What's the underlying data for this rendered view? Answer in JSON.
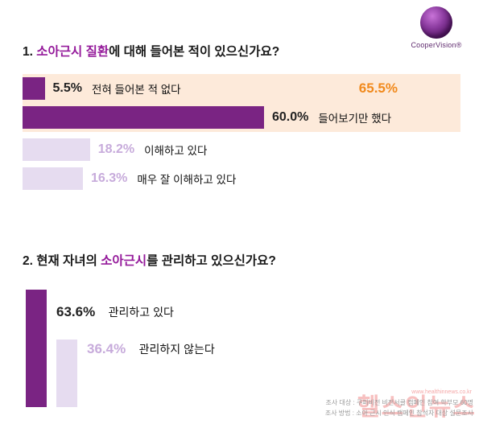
{
  "logo": {
    "brand": "CooperVision®"
  },
  "colors": {
    "bar_dark": "#7a2483",
    "bar_light": "#e6dcf0",
    "highlight_box": "#fdeada",
    "accent_orange": "#f18a1d",
    "title_highlight": "#951b9b",
    "light_pct_text": "#c7abdb"
  },
  "q1": {
    "title_prefix": "1. ",
    "title_highlight": "소아근시 질환",
    "title_suffix": "에 대해 들어본 적이 있으신가요?",
    "combined_value": "65.5%",
    "rows": [
      {
        "pct": "5.5%",
        "label": "전혀 들어본 적 없다",
        "value": 5.5
      },
      {
        "pct": "60.0%",
        "label": "들어보기만 했다",
        "value": 60.0
      },
      {
        "pct": "18.2%",
        "label": "이해하고 있다",
        "value": 18.2
      },
      {
        "pct": "16.3%",
        "label": "매우 잘 이해하고 있다",
        "value": 16.3
      }
    ]
  },
  "q2": {
    "title_prefix": "2. 현재 자녀의 ",
    "title_highlight": "소아근시",
    "title_suffix": "를 관리하고 있으신가요?",
    "rows": [
      {
        "pct": "63.6%",
        "label": "관리하고 있다",
        "value": 63.6
      },
      {
        "pct": "36.4%",
        "label": "관리하지 않는다",
        "value": 36.4
      }
    ]
  },
  "footer": {
    "line1": "조사 대상 : 쿠퍼비전 비전서클 캠페인 참여 학부모 60명",
    "line2": "조사 방법 : 소아 근시 인식 캠페인 참석자 대상 설문조사",
    "watermark": "헬스인뉴스",
    "watermark_url": "www.healthinnews.co.kr"
  },
  "chart_data": [
    {
      "type": "bar",
      "orientation": "horizontal",
      "title": "1. 소아근시 질환에 대해 들어본 적이 있으신가요?",
      "categories": [
        "전혀 들어본 적 없다",
        "들어보기만 했다",
        "이해하고 있다",
        "매우 잘 이해하고 있다"
      ],
      "values": [
        5.5,
        60.0,
        18.2,
        16.3
      ],
      "unit": "%",
      "annotations": [
        {
          "text": "65.5%",
          "note": "highlighted total of first two categories"
        }
      ],
      "legend": "none",
      "grid": false
    },
    {
      "type": "bar",
      "orientation": "vertical",
      "title": "2. 현재 자녀의 소아근시를 관리하고 있으신가요?",
      "categories": [
        "관리하고 있다",
        "관리하지 않는다"
      ],
      "values": [
        63.6,
        36.4
      ],
      "unit": "%",
      "legend": "none",
      "grid": false
    }
  ]
}
